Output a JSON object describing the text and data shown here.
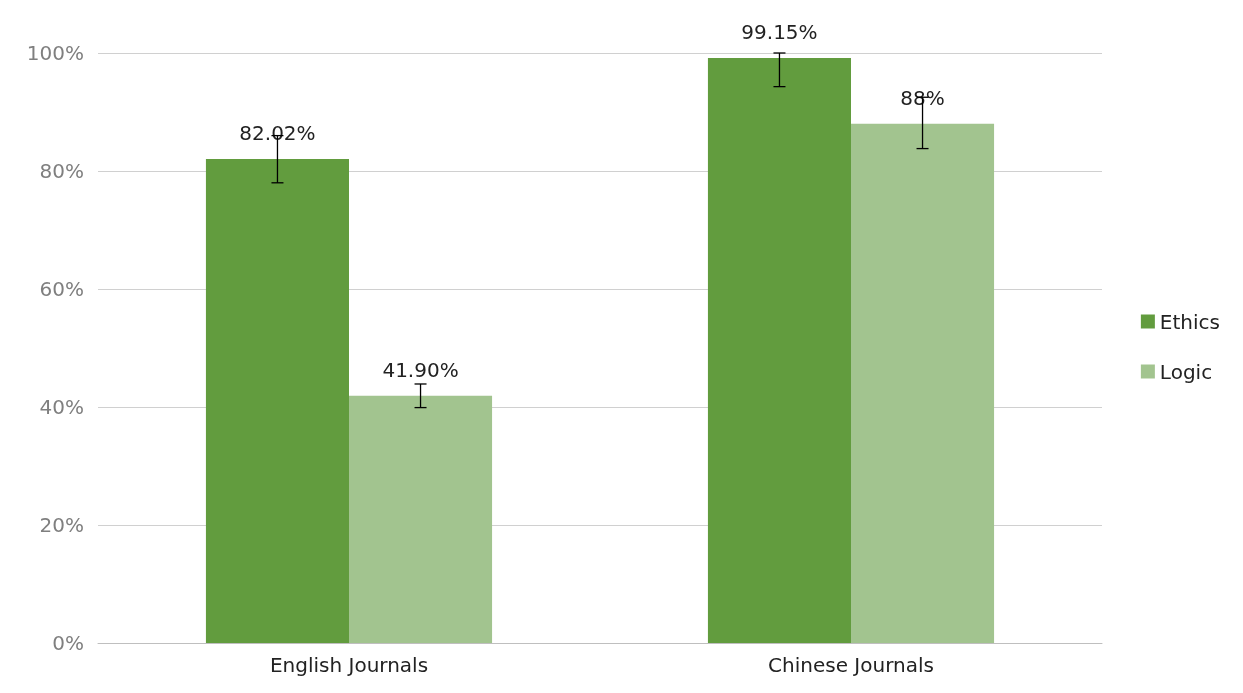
{
  "chart_data": {
    "type": "bar",
    "categories": [
      "English Journals",
      "Chinese Journals"
    ],
    "series": [
      {
        "name": "Ethics",
        "color": "#629c3e",
        "values": [
          82.02,
          99.15
        ],
        "value_labels": [
          "82.02%",
          "99.15%"
        ],
        "errors": [
          [
            78,
            86
          ],
          [
            94.3,
            100
          ]
        ]
      },
      {
        "name": "Logic",
        "color": "#a2c48f",
        "values": [
          41.9,
          88
        ],
        "value_labels": [
          "41.90%",
          "88%"
        ],
        "errors": [
          [
            39.9,
            43.9
          ],
          [
            83.8,
            92.5
          ]
        ]
      }
    ],
    "ylim": [
      0,
      100
    ],
    "yticks": [
      {
        "value": 0,
        "label": "0%"
      },
      {
        "value": 20,
        "label": "20%"
      },
      {
        "value": 40,
        "label": "40%"
      },
      {
        "value": 60,
        "label": "60%"
      },
      {
        "value": 80,
        "label": "80%"
      },
      {
        "value": 100,
        "label": "100%"
      }
    ],
    "grid": "y",
    "legend": "right"
  }
}
